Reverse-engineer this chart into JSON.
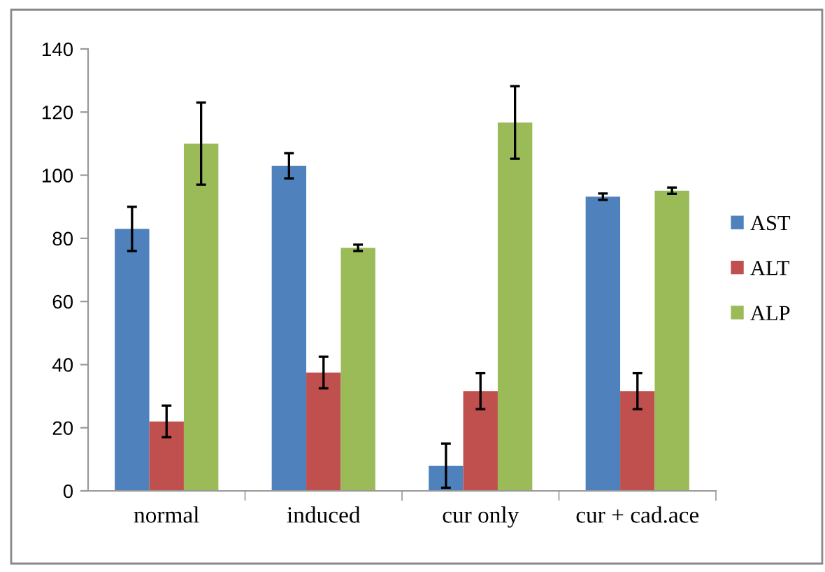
{
  "chart_data": {
    "type": "bar",
    "categories": [
      "normal",
      "induced",
      "cur only",
      "cur + cad.ace"
    ],
    "series": [
      {
        "name": "AST",
        "color": "#4f81bd",
        "values": [
          83,
          103,
          8,
          93.2
        ],
        "errors": [
          7,
          4,
          7,
          1
        ]
      },
      {
        "name": "ALT",
        "color": "#c0504d",
        "values": [
          22,
          37.5,
          31.6,
          31.6
        ],
        "errors": [
          5,
          5,
          5.7,
          5.7
        ]
      },
      {
        "name": "ALP",
        "color": "#9bbb59",
        "values": [
          110,
          77,
          116.7,
          95.1
        ],
        "errors": [
          13,
          1,
          11.5,
          1
        ]
      }
    ],
    "ylim": [
      0,
      140
    ],
    "yticks": [
      0,
      20,
      40,
      60,
      80,
      100,
      120,
      140
    ],
    "grid": false,
    "legend": "right"
  }
}
